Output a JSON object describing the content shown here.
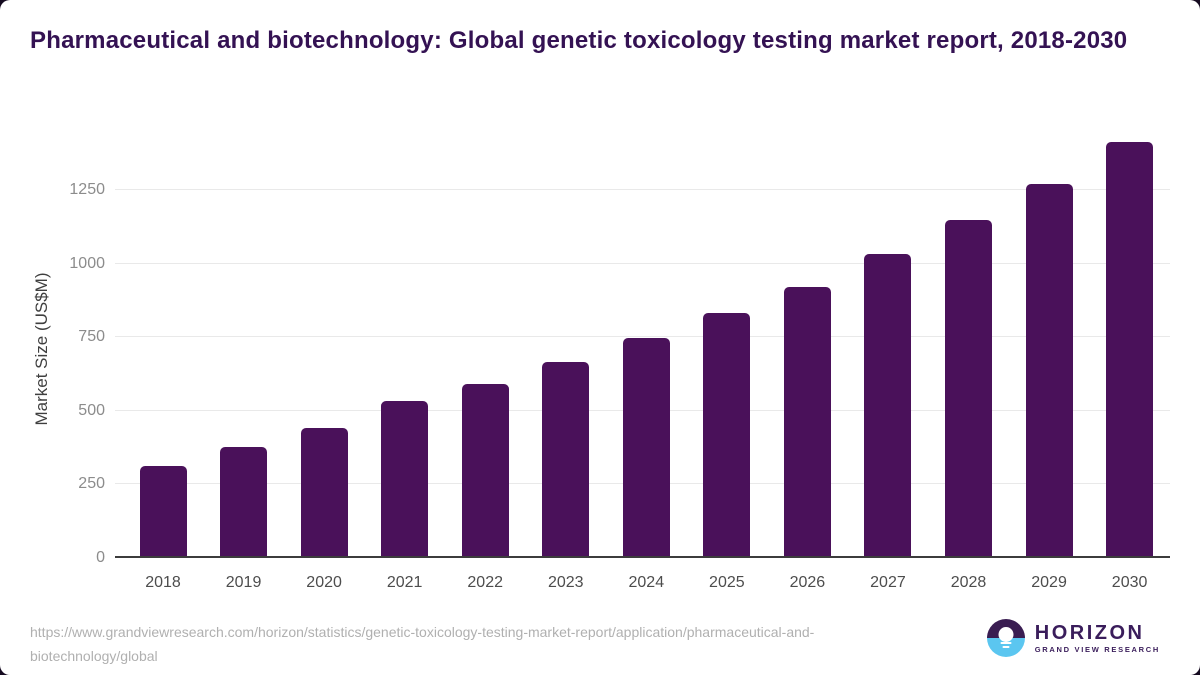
{
  "title": {
    "text": "Pharmaceutical and biotechnology: Global genetic toxicology testing market report, 2018-2030"
  },
  "chart_data": {
    "type": "bar",
    "title": "Pharmaceutical and biotechnology: Global genetic toxicology testing market report, 2018-2030",
    "categories": [
      "2018",
      "2019",
      "2020",
      "2021",
      "2022",
      "2023",
      "2024",
      "2025",
      "2026",
      "2027",
      "2028",
      "2029",
      "2030"
    ],
    "values": [
      305,
      370,
      435,
      525,
      585,
      660,
      740,
      825,
      915,
      1025,
      1140,
      1265,
      1405
    ],
    "xlabel": "",
    "ylabel": "Market Size (US$M)",
    "yticks": [
      0,
      250,
      500,
      750,
      1000,
      1250
    ],
    "ylim": [
      0,
      1420
    ],
    "grid": true,
    "legend": "none",
    "bar_color": "#4a115a"
  },
  "footer": {
    "source_url": "https://www.grandviewresearch.com/horizon/statistics/genetic-toxicology-testing-market-report/application/pharmaceutical-and-biotechnology/global",
    "logo": {
      "name": "HORIZON",
      "subtitle": "GRAND VIEW RESEARCH"
    }
  },
  "colors": {
    "bar": "#4a115a",
    "title_text": "#341253",
    "logo_purple": "#3a1d52",
    "logo_blue": "#5bc6f0",
    "gridline": "#e9e9e9",
    "axis_line": "#3c3c3c",
    "tick_text": "#8c8c8c",
    "url_text": "#b0b0b0"
  }
}
